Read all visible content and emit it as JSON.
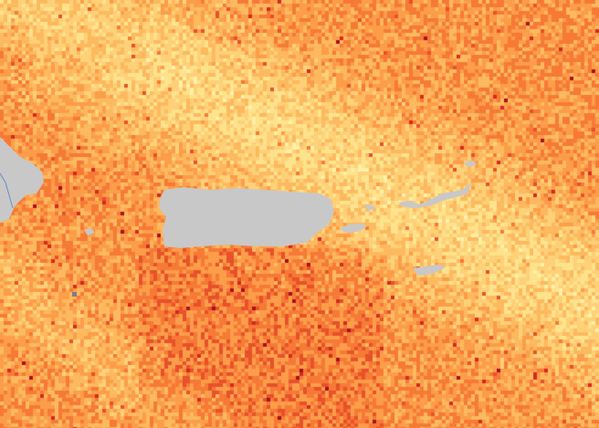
{
  "map": {
    "palette": [
      "#fff0a8",
      "#fee38d",
      "#fed078",
      "#fdb95f",
      "#fc9d4a",
      "#f67a36",
      "#e8512a",
      "#d42a20",
      "#a8101c"
    ],
    "land_color": "#c8c8c8",
    "river_color": "#6a8cc8",
    "no_data_color": "#7a7f86"
  }
}
